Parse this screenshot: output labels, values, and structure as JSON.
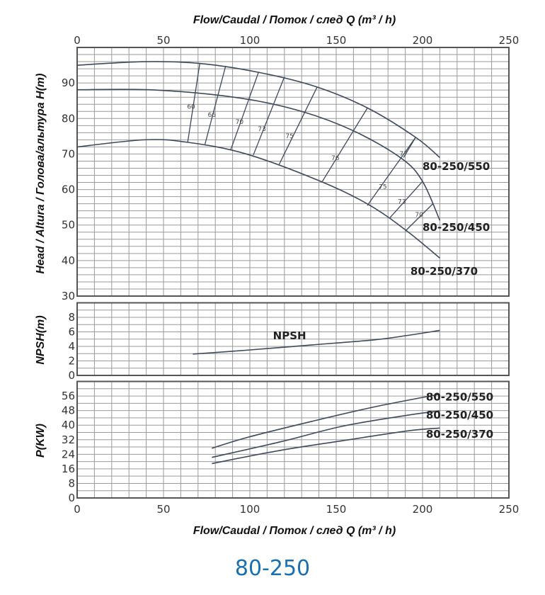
{
  "chart_data": [
    {
      "type": "line",
      "title": "Flow/Caudal  /  Поток / след   Q (m³ / h)",
      "xlabel": "Flow/Caudal  /  Поток / след   Q (m³ / h)",
      "ylabel": "Head / Altura  /  Голова/альтура H(m)",
      "xlim": [
        0,
        250
      ],
      "ylim": [
        30,
        100
      ],
      "xticks": [
        "0",
        "50",
        "100",
        "150",
        "200",
        "250"
      ],
      "yticks": [
        "30",
        "40",
        "50",
        "60",
        "70",
        "80",
        "90"
      ],
      "grid": true,
      "series": [
        {
          "name": "80-250/550",
          "label_at": [
            200,
            65.5
          ],
          "x": [
            0,
            39,
            71,
            105,
            138,
            168,
            196,
            210
          ],
          "y": [
            95,
            96,
            95.5,
            93,
            89,
            83,
            74.7,
            69
          ]
        },
        {
          "name": "80-250/450",
          "label_at": [
            200,
            48.3
          ],
          "x": [
            0,
            46,
            95,
            130,
            161,
            188,
            200,
            210
          ],
          "y": [
            88.1,
            88,
            85.7,
            82,
            76.3,
            68.7,
            62.3,
            51.3
          ]
        },
        {
          "name": "80-250/370",
          "label_at": [
            193,
            36
          ],
          "x": [
            0,
            39,
            64,
            98,
            141,
            169,
            191,
            210
          ],
          "y": [
            72,
            74,
            73.3,
            70,
            62.3,
            55.7,
            48.3,
            40.7
          ]
        }
      ],
      "efficiency_lines": [
        {
          "label": "60",
          "from": [
            71,
            95.5
          ],
          "to": [
            64,
            73.3
          ],
          "label_at": [
            66,
            82.7
          ]
        },
        {
          "label": "66",
          "from": [
            86,
            94.8
          ],
          "to": [
            74,
            72.7
          ],
          "label_at": [
            78,
            80.5
          ]
        },
        {
          "label": "70",
          "from": [
            105,
            93
          ],
          "to": [
            89,
            71.3
          ],
          "label_at": [
            94,
            78.5
          ]
        },
        {
          "label": "73",
          "from": [
            120,
            91.7
          ],
          "to": [
            102,
            69.7
          ],
          "label_at": [
            107,
            76.5
          ]
        },
        {
          "label": "75",
          "from": [
            139,
            88.9
          ],
          "to": [
            117,
            67.1
          ],
          "label_at": [
            123,
            74.5
          ]
        },
        {
          "label": "76",
          "from": [
            168,
            82.9
          ],
          "to": [
            142,
            62.3
          ],
          "label_at": [
            149.5,
            68.3
          ]
        },
        {
          "label": "77",
          "from": [
            196,
            74.7
          ],
          "to": [
            189,
            69
          ],
          "label_at": [
            189,
            69.5
          ]
        },
        {
          "label": "75",
          "from": [
            196,
            74.7
          ],
          "to": [
            168,
            55.5
          ],
          "label_at": [
            177,
            60.2
          ]
        },
        {
          "label": "73",
          "from": [
            200,
            62.3
          ],
          "to": [
            181,
            52
          ],
          "label_at": [
            188,
            56
          ]
        },
        {
          "label": "70",
          "from": [
            206,
            56
          ],
          "to": [
            190,
            48.3
          ],
          "label_at": [
            198,
            52.3
          ]
        }
      ]
    },
    {
      "type": "line",
      "ylabel": "NPSH(m)",
      "xlim": [
        0,
        250
      ],
      "ylim": [
        0,
        10
      ],
      "yticks": [
        "0",
        "2",
        "4",
        "6",
        "8"
      ],
      "grid": true,
      "series": [
        {
          "name": "NPSH",
          "label_at": [
            123,
            5
          ],
          "x": [
            67,
            99.5,
            136,
            172,
            191,
            210
          ],
          "y": [
            2.94,
            3.5,
            4.2,
            4.9,
            5.5,
            6.2
          ]
        }
      ]
    },
    {
      "type": "line",
      "ylabel": "P(KW)",
      "xlabel": "Flow/Caudal  /  Поток / след   Q (m³ / h)",
      "xlim": [
        0,
        250
      ],
      "ylim": [
        0,
        64
      ],
      "xticks": [
        "0",
        "50",
        "100",
        "150",
        "200",
        "250"
      ],
      "yticks": [
        "0",
        "8",
        "16",
        "24",
        "32",
        "40",
        "48",
        "56"
      ],
      "grid": true,
      "series": [
        {
          "name": "80-250/550",
          "label_at": [
            202,
            53.5
          ],
          "x": [
            78,
            99.5,
            136,
            172,
            210
          ],
          "y": [
            27.3,
            33.5,
            42.1,
            50,
            57
          ]
        },
        {
          "name": "80-250/450",
          "label_at": [
            202,
            43.5
          ],
          "x": [
            78,
            118,
            154,
            191,
            210
          ],
          "y": [
            22.3,
            30.9,
            39.5,
            45.4,
            47.8
          ]
        },
        {
          "name": "80-250/370",
          "label_at": [
            202,
            33
          ],
          "x": [
            78,
            118,
            154,
            191,
            210
          ],
          "y": [
            18.9,
            26.2,
            31.5,
            36.8,
            38.4
          ]
        }
      ]
    }
  ],
  "model": "80-250",
  "colors": {
    "curve": "#3d4a5c",
    "grid": "#9a9a9a",
    "frame": "#555555",
    "model": "#1a6fb0"
  }
}
